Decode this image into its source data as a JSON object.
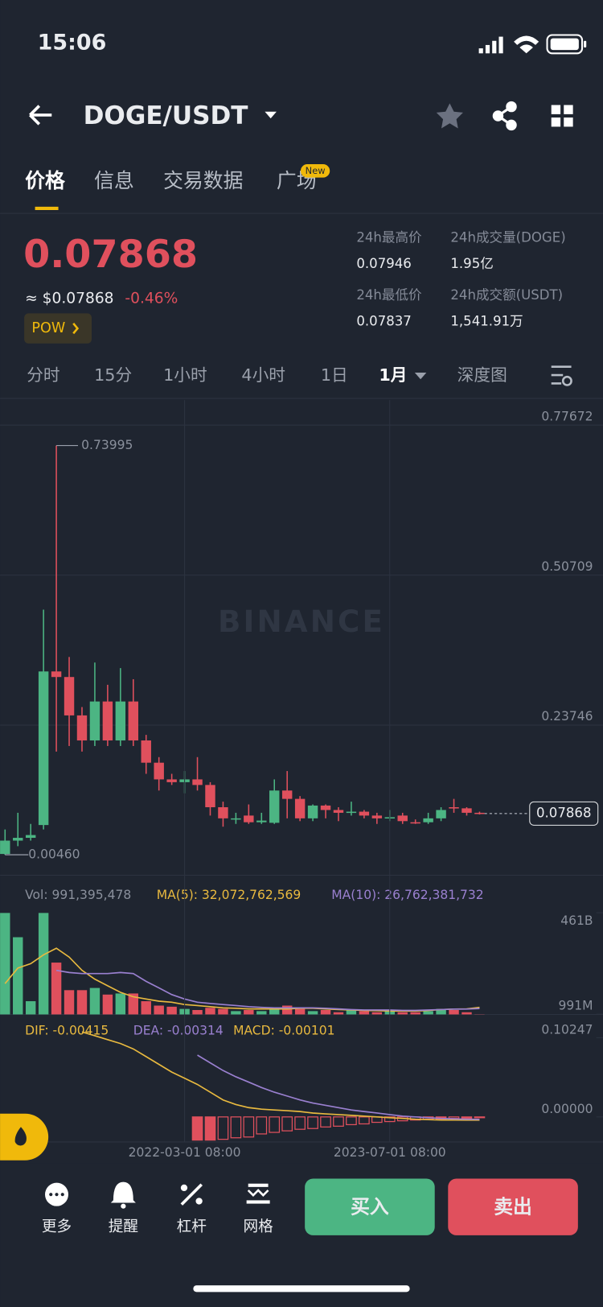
{
  "status_bar": {
    "time": "15:06"
  },
  "header": {
    "pair": "DOGE/USDT"
  },
  "tabs": {
    "items": [
      "价格",
      "信息",
      "交易数据",
      "广场"
    ],
    "active": 0,
    "badge": "New"
  },
  "price": {
    "last": "0.07868",
    "approx": "≈ $0.07868",
    "change": "-0.46%",
    "tag": "POW"
  },
  "stats": [
    {
      "label": "24h最高价",
      "value": "0.07946"
    },
    {
      "label": "24h成交量(DOGE)",
      "value": "1.95亿"
    },
    {
      "label": "24h最低价",
      "value": "0.07837"
    },
    {
      "label": "24h成交额(USDT)",
      "value": "1,541.91万"
    }
  ],
  "intervals": {
    "items": [
      "分时",
      "15分",
      "1小时",
      "4小时",
      "1日",
      "1月",
      "深度图"
    ],
    "active": 5
  },
  "chart_data": [
    {
      "type": "candlestick",
      "watermark": "BINANCE",
      "grid": true,
      "up_color": "#4cb583",
      "down_color": "#e0505d",
      "ylim": [
        -0.0322,
        0.8216
      ],
      "yticks": [
        0.77672,
        0.50709,
        0.23746
      ],
      "open": [
        0.006,
        0.03,
        0.035,
        0.058,
        0.334,
        0.324,
        0.255,
        0.21,
        0.28,
        0.21,
        0.28,
        0.21,
        0.17,
        0.14,
        0.135,
        0.14,
        0.13,
        0.09,
        0.068,
        0.075,
        0.063,
        0.062,
        0.12,
        0.105,
        0.07,
        0.093,
        0.085,
        0.08,
        0.082,
        0.075,
        0.07,
        0.075,
        0.063,
        0.063,
        0.07,
        0.09,
        0.088,
        0.08
      ],
      "high": [
        0.05,
        0.08,
        0.06,
        0.445,
        0.73995,
        0.36,
        0.27,
        0.35,
        0.31,
        0.34,
        0.32,
        0.22,
        0.18,
        0.15,
        0.155,
        0.18,
        0.135,
        0.1,
        0.08,
        0.095,
        0.08,
        0.14,
        0.155,
        0.11,
        0.095,
        0.095,
        0.09,
        0.1,
        0.085,
        0.08,
        0.085,
        0.08,
        0.068,
        0.08,
        0.09,
        0.105,
        0.09,
        0.082
      ],
      "low": [
        0.0046,
        0.02,
        0.03,
        0.05,
        0.19,
        0.2,
        0.19,
        0.2,
        0.2,
        0.2,
        0.2,
        0.15,
        0.12,
        0.13,
        0.115,
        0.12,
        0.075,
        0.055,
        0.06,
        0.06,
        0.06,
        0.06,
        0.07,
        0.065,
        0.065,
        0.07,
        0.065,
        0.075,
        0.07,
        0.06,
        0.065,
        0.06,
        0.06,
        0.06,
        0.065,
        0.08,
        0.075,
        0.077
      ],
      "close": [
        0.03,
        0.035,
        0.04,
        0.334,
        0.324,
        0.255,
        0.21,
        0.28,
        0.21,
        0.28,
        0.21,
        0.17,
        0.14,
        0.135,
        0.14,
        0.13,
        0.09,
        0.07,
        0.07,
        0.063,
        0.066,
        0.12,
        0.105,
        0.07,
        0.093,
        0.085,
        0.08,
        0.082,
        0.075,
        0.07,
        0.072,
        0.065,
        0.062,
        0.07,
        0.085,
        0.088,
        0.08,
        0.07868
      ],
      "annotations": {
        "max": 0.73995,
        "min": {
          "value": 0.0046,
          "label": "0.00460"
        },
        "last": 0.07868
      }
    },
    {
      "type": "volume",
      "label": "Vol: 991,395,478",
      "ylim": [
        0,
        461000000000.0
      ],
      "yticks": [
        {
          "value": 461000000000.0,
          "label": "461B"
        },
        {
          "value": 991000000,
          "label": "991M"
        }
      ],
      "values": [
        460000000000.0,
        350000000000.0,
        60000000000.0,
        460000000000.0,
        235000000000.0,
        110000000000.0,
        110000000000.0,
        120000000000.0,
        90000000000.0,
        95000000000.0,
        95000000000.0,
        60000000000.0,
        40000000000.0,
        35000000000.0,
        25000000000.0,
        20000000000.0,
        30000000000.0,
        25000000000.0,
        15000000000.0,
        20000000000.0,
        15000000000.0,
        25000000000.0,
        40000000000.0,
        25000000000.0,
        15000000000.0,
        20000000000.0,
        10000000000.0,
        20000000000.0,
        15000000000.0,
        10000000000.0,
        15000000000.0,
        10000000000.0,
        10000000000.0,
        15000000000.0,
        25000000000.0,
        20000000000.0,
        10000000000.0,
        991395478
      ],
      "series": [
        {
          "name": "MA(5): 32,072,762,569",
          "color": "#e8b93f",
          "values": [
            140000000000.0,
            210000000000.0,
            230000000000.0,
            270000000000.0,
            300000000000.0,
            260000000000.0,
            200000000000.0,
            160000000000.0,
            130000000000.0,
            100000000000.0,
            80000000000.0,
            70000000000.0,
            60000000000.0,
            55000000000.0,
            45000000000.0,
            40000000000.0,
            35000000000.0,
            30000000000.0,
            28000000000.0,
            25000000000.0,
            25000000000.0,
            25000000000.0,
            25000000000.0,
            28000000000.0,
            28000000000.0,
            25000000000.0,
            22000000000.0,
            20000000000.0,
            18000000000.0,
            17000000000.0,
            16000000000.0,
            15000000000.0,
            15000000000.0,
            18000000000.0,
            22000000000.0,
            24000000000.0,
            25000000000.0,
            32072762569
          ]
        },
        {
          "name": "MA(10): 26,762,381,732",
          "color": "#9a80d0",
          "values": [
            null,
            null,
            null,
            null,
            200000000000.0,
            190000000000.0,
            185000000000.0,
            185000000000.0,
            185000000000.0,
            190000000000.0,
            185000000000.0,
            150000000000.0,
            120000000000.0,
            90000000000.0,
            70000000000.0,
            55000000000.0,
            50000000000.0,
            45000000000.0,
            40000000000.0,
            35000000000.0,
            32000000000.0,
            30000000000.0,
            30000000000.0,
            30000000000.0,
            30000000000.0,
            28000000000.0,
            25000000000.0,
            22000000000.0,
            20000000000.0,
            20000000000.0,
            20000000000.0,
            18000000000.0,
            18000000000.0,
            20000000000.0,
            22000000000.0,
            24000000000.0,
            24000000000.0,
            26762381732
          ]
        }
      ]
    },
    {
      "type": "macd",
      "ylim": [
        -0.0324,
        0.124
      ],
      "yticks": [
        0.10247,
        {
          "value": 0,
          "label": "0.00000"
        }
      ],
      "xticks": [
        {
          "value": 14,
          "label": "2022-03-01 08:00"
        },
        {
          "value": 30,
          "label": "2023-07-01 08:00"
        }
      ],
      "series": [
        {
          "name": "DIF: -0.00415",
          "color": "#e8b93f",
          "values": [
            null,
            null,
            null,
            null,
            null,
            null,
            0.11,
            0.105,
            0.1,
            0.095,
            0.088,
            0.078,
            0.068,
            0.058,
            0.05,
            0.042,
            0.032,
            0.022,
            0.016,
            0.012,
            0.01,
            0.009,
            0.008,
            0.007,
            0.005,
            0.004,
            0.003,
            0.002,
            0.001,
            0,
            -0.001,
            -0.002,
            -0.003,
            -0.0035,
            -0.004,
            -0.004,
            -0.0041,
            -0.00415
          ]
        },
        {
          "name": "DEA: -0.00314",
          "color": "#9a80d0",
          "values": [
            null,
            null,
            null,
            null,
            null,
            null,
            null,
            null,
            null,
            null,
            null,
            null,
            null,
            null,
            null,
            0.08,
            0.07,
            0.06,
            0.052,
            0.045,
            0.038,
            0.032,
            0.027,
            0.022,
            0.018,
            0.015,
            0.012,
            0.009,
            0.007,
            0.005,
            0.003,
            0.001,
            0,
            -0.001,
            -0.002,
            -0.0025,
            -0.003,
            -0.00314
          ]
        }
      ],
      "histogram": {
        "name": "MACD: -0.00101",
        "color": "#e0505d",
        "values": [
          null,
          null,
          null,
          null,
          null,
          null,
          null,
          null,
          null,
          null,
          null,
          null,
          null,
          null,
          null,
          -0.03,
          -0.03,
          -0.029,
          -0.027,
          -0.026,
          -0.022,
          -0.02,
          -0.018,
          -0.016,
          -0.015,
          -0.013,
          -0.012,
          -0.01,
          -0.009,
          -0.007,
          -0.006,
          -0.005,
          -0.004,
          -0.003,
          -0.003,
          -0.002,
          -0.002,
          -0.00101
        ]
      }
    }
  ],
  "bottom_bar": {
    "items": [
      "更多",
      "提醒",
      "杠杆",
      "网格"
    ],
    "buy": "买入",
    "sell": "卖出"
  }
}
